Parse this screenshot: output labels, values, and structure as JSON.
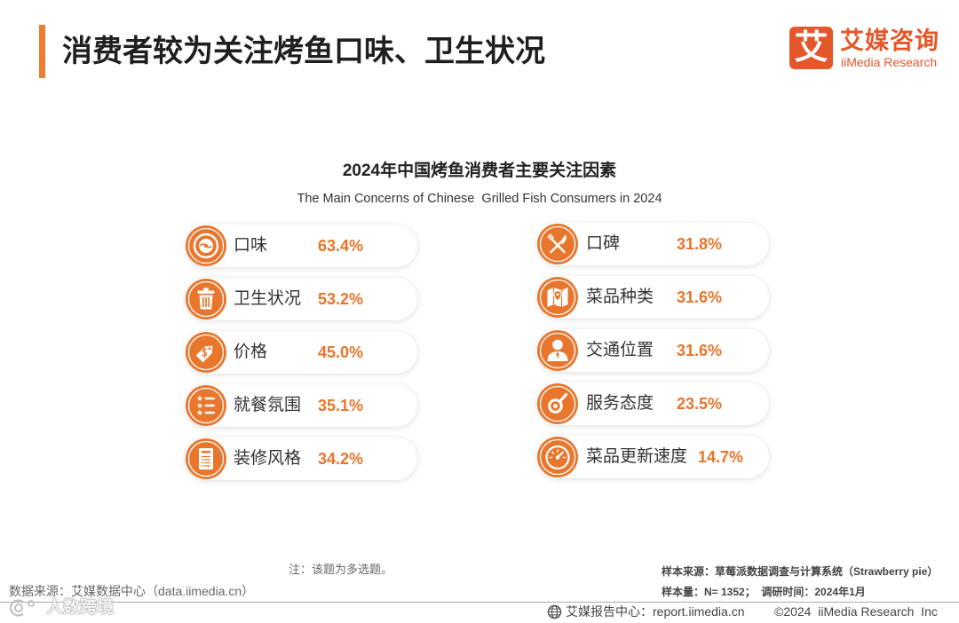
{
  "header": {
    "title": "消费者较为关注烤鱼口味、卫生状况",
    "logo_char": "艾",
    "brand_cn": "艾媒咨询",
    "brand_en": "iiMedia Research"
  },
  "colors": {
    "accent": "#EE7D31",
    "brand": "#E4572A",
    "value": "#E8742A",
    "icon": "#E8762D"
  },
  "chart_data": {
    "type": "table",
    "title": "2024年中国烤鱼消费者主要关注因素",
    "subtitle": "The Main Concerns of Chinese  Grilled Fish Consumers in 2024",
    "categories": [
      "口味",
      "卫生状况",
      "价格",
      "就餐氛围",
      "装修风格",
      "口碑",
      "菜品种类",
      "交通位置",
      "服务态度",
      "菜品更新速度"
    ],
    "values": [
      63.4,
      53.2,
      45.0,
      35.1,
      34.2,
      31.8,
      31.6,
      31.6,
      23.5,
      14.7
    ],
    "value_labels": [
      "63.4%",
      "53.2%",
      "45.0%",
      "35.1%",
      "34.2%",
      "31.8%",
      "31.6%",
      "31.6%",
      "23.5%",
      "14.7%"
    ],
    "icons": [
      "plate-icon",
      "trash-bin-icon",
      "price-tag-icon",
      "star-list-icon",
      "menu-card-icon",
      "fork-knife-icon",
      "map-pin-icon",
      "person-icon",
      "spoon-icon",
      "gauge-icon"
    ]
  },
  "notes": {
    "note": "注：该题为多选题。",
    "data_source": "数据来源：艾媒数据中心（data.iimedia.cn）",
    "sample_source": "样本来源：草莓派数据调查与计算系统（Strawberry pie）",
    "sample_size": "样本量：N= 1352；  调研时间：2024年1月"
  },
  "bottom_bar": {
    "report_center": "艾媒报告中心：report.iimedia.cn",
    "copyright": "©2024  iiMedia Research  Inc",
    "watermark": "人数跨境"
  }
}
